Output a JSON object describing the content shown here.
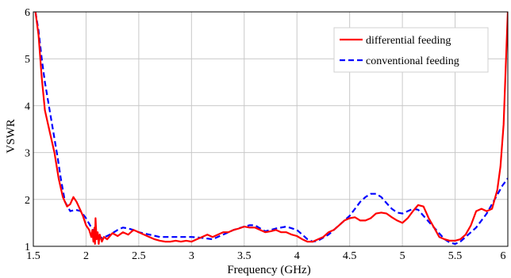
{
  "chart_data": {
    "type": "line",
    "title": "",
    "xlabel": "Frequency (GHz)",
    "ylabel": "VSWR",
    "xlim": [
      1.5,
      6
    ],
    "ylim": [
      1,
      6
    ],
    "xticks": [
      1.5,
      2,
      2.5,
      3,
      3.5,
      4,
      4.5,
      5,
      5.5,
      6
    ],
    "xtick_labels": [
      "1.5",
      "2",
      "2.5",
      "3",
      "3.5",
      "4",
      "4.5",
      "5",
      "5.5",
      "6"
    ],
    "yticks": [
      1,
      2,
      3,
      4,
      5,
      6
    ],
    "ytick_labels": [
      "1",
      "2",
      "3",
      "4",
      "5",
      "6"
    ],
    "grid": true,
    "legend_position": "top-right",
    "series": [
      {
        "name": "differential feeding",
        "color": "#ff0000",
        "dash": "solid",
        "points": [
          [
            1.52,
            6.0
          ],
          [
            1.55,
            5.5
          ],
          [
            1.58,
            4.6
          ],
          [
            1.61,
            3.9
          ],
          [
            1.65,
            3.5
          ],
          [
            1.7,
            3.0
          ],
          [
            1.74,
            2.45
          ],
          [
            1.78,
            2.05
          ],
          [
            1.82,
            1.85
          ],
          [
            1.85,
            1.9
          ],
          [
            1.88,
            2.05
          ],
          [
            1.91,
            1.95
          ],
          [
            1.94,
            1.8
          ],
          [
            1.97,
            1.65
          ],
          [
            2.0,
            1.45
          ],
          [
            2.03,
            1.35
          ],
          [
            2.05,
            1.2
          ],
          [
            2.06,
            1.35
          ],
          [
            2.07,
            1.1
          ],
          [
            2.08,
            1.4
          ],
          [
            2.085,
            1.05
          ],
          [
            2.09,
            1.6
          ],
          [
            2.1,
            1.15
          ],
          [
            2.11,
            1.3
          ],
          [
            2.12,
            1.05
          ],
          [
            2.13,
            1.25
          ],
          [
            2.15,
            1.1
          ],
          [
            2.17,
            1.2
          ],
          [
            2.2,
            1.15
          ],
          [
            2.25,
            1.28
          ],
          [
            2.3,
            1.22
          ],
          [
            2.35,
            1.3
          ],
          [
            2.4,
            1.25
          ],
          [
            2.45,
            1.35
          ],
          [
            2.5,
            1.3
          ],
          [
            2.55,
            1.25
          ],
          [
            2.6,
            1.2
          ],
          [
            2.65,
            1.15
          ],
          [
            2.7,
            1.12
          ],
          [
            2.75,
            1.1
          ],
          [
            2.8,
            1.1
          ],
          [
            2.85,
            1.12
          ],
          [
            2.9,
            1.1
          ],
          [
            2.95,
            1.12
          ],
          [
            3.0,
            1.1
          ],
          [
            3.05,
            1.15
          ],
          [
            3.1,
            1.2
          ],
          [
            3.15,
            1.25
          ],
          [
            3.2,
            1.2
          ],
          [
            3.25,
            1.25
          ],
          [
            3.3,
            1.3
          ],
          [
            3.35,
            1.3
          ],
          [
            3.4,
            1.35
          ],
          [
            3.45,
            1.38
          ],
          [
            3.5,
            1.42
          ],
          [
            3.55,
            1.4
          ],
          [
            3.6,
            1.4
          ],
          [
            3.65,
            1.35
          ],
          [
            3.7,
            1.3
          ],
          [
            3.75,
            1.32
          ],
          [
            3.8,
            1.35
          ],
          [
            3.85,
            1.3
          ],
          [
            3.9,
            1.3
          ],
          [
            3.95,
            1.25
          ],
          [
            4.0,
            1.22
          ],
          [
            4.05,
            1.15
          ],
          [
            4.1,
            1.1
          ],
          [
            4.15,
            1.1
          ],
          [
            4.2,
            1.15
          ],
          [
            4.25,
            1.2
          ],
          [
            4.3,
            1.3
          ],
          [
            4.35,
            1.35
          ],
          [
            4.4,
            1.45
          ],
          [
            4.45,
            1.55
          ],
          [
            4.5,
            1.6
          ],
          [
            4.55,
            1.62
          ],
          [
            4.6,
            1.55
          ],
          [
            4.65,
            1.55
          ],
          [
            4.7,
            1.6
          ],
          [
            4.75,
            1.7
          ],
          [
            4.8,
            1.72
          ],
          [
            4.85,
            1.7
          ],
          [
            4.9,
            1.62
          ],
          [
            4.95,
            1.55
          ],
          [
            5.0,
            1.5
          ],
          [
            5.05,
            1.6
          ],
          [
            5.1,
            1.75
          ],
          [
            5.15,
            1.88
          ],
          [
            5.2,
            1.85
          ],
          [
            5.25,
            1.6
          ],
          [
            5.3,
            1.4
          ],
          [
            5.35,
            1.2
          ],
          [
            5.4,
            1.15
          ],
          [
            5.45,
            1.12
          ],
          [
            5.5,
            1.12
          ],
          [
            5.55,
            1.15
          ],
          [
            5.6,
            1.25
          ],
          [
            5.65,
            1.45
          ],
          [
            5.7,
            1.75
          ],
          [
            5.75,
            1.8
          ],
          [
            5.8,
            1.75
          ],
          [
            5.85,
            1.8
          ],
          [
            5.9,
            2.2
          ],
          [
            5.93,
            2.7
          ],
          [
            5.96,
            3.6
          ],
          [
            5.98,
            4.8
          ],
          [
            6.0,
            6.0
          ]
        ]
      },
      {
        "name": "conventional feeding",
        "color": "#0000ff",
        "dash": "dashed",
        "points": [
          [
            1.52,
            6.0
          ],
          [
            1.55,
            5.6
          ],
          [
            1.58,
            5.0
          ],
          [
            1.61,
            4.5
          ],
          [
            1.64,
            4.1
          ],
          [
            1.67,
            3.7
          ],
          [
            1.7,
            3.3
          ],
          [
            1.73,
            2.9
          ],
          [
            1.76,
            2.45
          ],
          [
            1.8,
            1.95
          ],
          [
            1.85,
            1.75
          ],
          [
            1.9,
            1.78
          ],
          [
            1.95,
            1.75
          ],
          [
            2.0,
            1.6
          ],
          [
            2.05,
            1.4
          ],
          [
            2.1,
            1.22
          ],
          [
            2.15,
            1.18
          ],
          [
            2.2,
            1.22
          ],
          [
            2.25,
            1.28
          ],
          [
            2.3,
            1.35
          ],
          [
            2.35,
            1.4
          ],
          [
            2.4,
            1.38
          ],
          [
            2.45,
            1.35
          ],
          [
            2.5,
            1.3
          ],
          [
            2.6,
            1.25
          ],
          [
            2.7,
            1.2
          ],
          [
            2.8,
            1.2
          ],
          [
            2.9,
            1.2
          ],
          [
            3.0,
            1.2
          ],
          [
            3.1,
            1.18
          ],
          [
            3.2,
            1.15
          ],
          [
            3.3,
            1.25
          ],
          [
            3.4,
            1.35
          ],
          [
            3.5,
            1.42
          ],
          [
            3.55,
            1.45
          ],
          [
            3.6,
            1.45
          ],
          [
            3.7,
            1.32
          ],
          [
            3.8,
            1.38
          ],
          [
            3.9,
            1.42
          ],
          [
            4.0,
            1.35
          ],
          [
            4.05,
            1.25
          ],
          [
            4.1,
            1.15
          ],
          [
            4.15,
            1.1
          ],
          [
            4.2,
            1.12
          ],
          [
            4.3,
            1.25
          ],
          [
            4.4,
            1.45
          ],
          [
            4.5,
            1.65
          ],
          [
            4.6,
            1.95
          ],
          [
            4.65,
            2.05
          ],
          [
            4.7,
            2.12
          ],
          [
            4.75,
            2.12
          ],
          [
            4.8,
            2.05
          ],
          [
            4.85,
            1.92
          ],
          [
            4.9,
            1.8
          ],
          [
            4.95,
            1.72
          ],
          [
            5.0,
            1.7
          ],
          [
            5.05,
            1.75
          ],
          [
            5.1,
            1.8
          ],
          [
            5.15,
            1.78
          ],
          [
            5.2,
            1.65
          ],
          [
            5.3,
            1.4
          ],
          [
            5.4,
            1.15
          ],
          [
            5.45,
            1.08
          ],
          [
            5.5,
            1.05
          ],
          [
            5.55,
            1.1
          ],
          [
            5.6,
            1.2
          ],
          [
            5.7,
            1.4
          ],
          [
            5.8,
            1.7
          ],
          [
            5.85,
            1.9
          ],
          [
            5.9,
            2.1
          ],
          [
            5.95,
            2.3
          ],
          [
            6.0,
            2.45
          ]
        ]
      }
    ]
  }
}
